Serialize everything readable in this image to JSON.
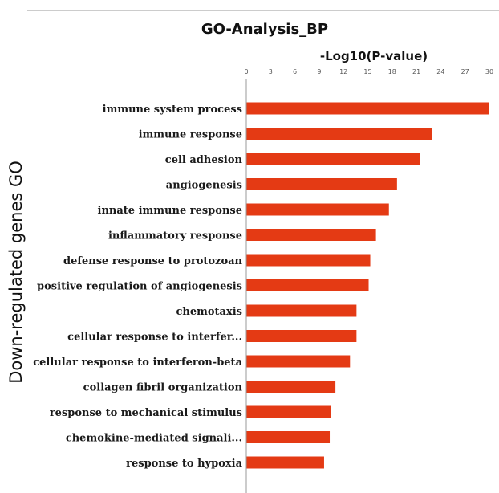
{
  "chart_data": {
    "type": "bar",
    "orientation": "horizontal",
    "title": "GO-Analysis_BP",
    "xlabel": "-Log10(P-value)",
    "ylabel": "Down-regulated genes GO",
    "xlim": [
      0,
      30
    ],
    "x_ticks": [
      "0",
      "3",
      "6",
      "9",
      "12",
      "15",
      "18",
      "21",
      "24",
      "27",
      "30"
    ],
    "categories": [
      "immune system process",
      "immune response",
      "cell adhesion",
      "angiogenesis",
      "innate immune response",
      "inflammatory response",
      "defense response to protozoan",
      "positive regulation of angiogenesis",
      "chemotaxis",
      "cellular response to interfer...",
      "cellular response to interferon-beta",
      "collagen fibril organization",
      "response to mechanical stimulus",
      "chemokine-mediated signali...",
      "response to hypoxia"
    ],
    "values": [
      30.0,
      22.9,
      21.4,
      18.6,
      17.6,
      16.0,
      15.3,
      15.1,
      13.6,
      13.6,
      12.8,
      11.0,
      10.4,
      10.3,
      9.6
    ],
    "bar_color": "#e43a14",
    "grid": false,
    "legend": "none"
  }
}
